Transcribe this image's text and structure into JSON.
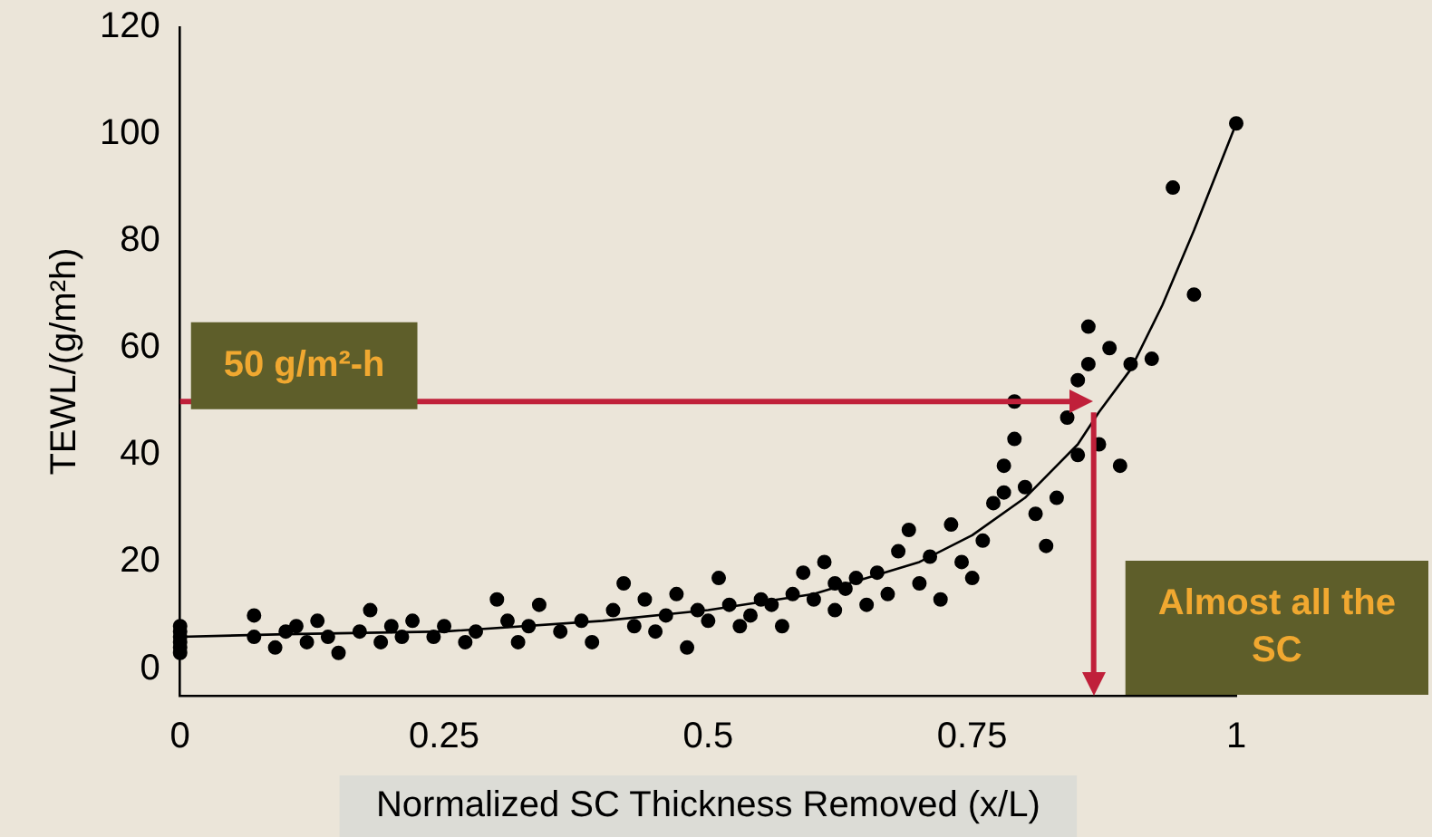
{
  "chart_data": {
    "type": "scatter",
    "xlabel": "Normalized SC Thickness Removed (x/L)",
    "ylabel": "TEWL/(g/m²h)",
    "xlim": [
      0,
      1
    ],
    "xticks": [
      0,
      0.25,
      0.5,
      0.75,
      1
    ],
    "ylim": [
      -5,
      120
    ],
    "yticks": [
      0,
      20,
      40,
      60,
      80,
      100,
      120
    ],
    "grid": false,
    "legend": false,
    "marker": "circle",
    "series": [
      {
        "type": "scatter",
        "color": "#000000",
        "x": [
          0,
          0,
          0,
          0,
          0,
          0,
          0.07,
          0.07,
          0.09,
          0.1,
          0.11,
          0.12,
          0.13,
          0.14,
          0.15,
          0.17,
          0.18,
          0.19,
          0.2,
          0.21,
          0.22,
          0.24,
          0.25,
          0.27,
          0.28,
          0.3,
          0.31,
          0.32,
          0.33,
          0.34,
          0.36,
          0.38,
          0.39,
          0.41,
          0.42,
          0.43,
          0.44,
          0.45,
          0.46,
          0.47,
          0.48,
          0.49,
          0.5,
          0.51,
          0.52,
          0.53,
          0.54,
          0.55,
          0.56,
          0.57,
          0.58,
          0.59,
          0.6,
          0.61,
          0.62,
          0.62,
          0.63,
          0.64,
          0.65,
          0.66,
          0.67,
          0.68,
          0.69,
          0.7,
          0.71,
          0.72,
          0.73,
          0.74,
          0.75,
          0.76,
          0.77,
          0.78,
          0.78,
          0.79,
          0.79,
          0.8,
          0.81,
          0.82,
          0.83,
          0.84,
          0.85,
          0.85,
          0.86,
          0.86,
          0.87,
          0.88,
          0.89,
          0.9,
          0.92,
          0.94,
          0.96,
          1.0
        ],
        "values": [
          3,
          4,
          5,
          6,
          7,
          8,
          10,
          6,
          4,
          7,
          8,
          5,
          9,
          6,
          3,
          7,
          11,
          5,
          8,
          6,
          9,
          6,
          8,
          5,
          7,
          13,
          9,
          5,
          8,
          12,
          7,
          9,
          5,
          11,
          16,
          8,
          13,
          7,
          10,
          14,
          4,
          11,
          9,
          17,
          12,
          8,
          10,
          13,
          12,
          8,
          14,
          18,
          13,
          20,
          16,
          11,
          15,
          17,
          12,
          18,
          14,
          22,
          26,
          16,
          21,
          13,
          27,
          20,
          17,
          24,
          31,
          38,
          33,
          50,
          43,
          34,
          29,
          23,
          32,
          47,
          54,
          40,
          64,
          57,
          42,
          60,
          38,
          57,
          58,
          90,
          70,
          102
        ]
      },
      {
        "type": "line",
        "color": "#000000",
        "marker": "none",
        "x": [
          0,
          0.1,
          0.25,
          0.4,
          0.5,
          0.6,
          0.7,
          0.75,
          0.8,
          0.85,
          0.87,
          0.9,
          0.93,
          0.96,
          1.0
        ],
        "values": [
          6,
          6.5,
          7,
          9,
          11,
          14,
          20,
          25,
          32,
          42,
          48,
          56,
          68,
          82,
          102
        ]
      }
    ],
    "ref_lines": [
      {
        "axis": "y",
        "value": 50,
        "color": "#c0203a"
      },
      {
        "axis": "x",
        "value": 0.865,
        "color": "#c0203a"
      }
    ],
    "annotations": [
      "50 g/m²-h",
      "Almost all the SC"
    ]
  }
}
